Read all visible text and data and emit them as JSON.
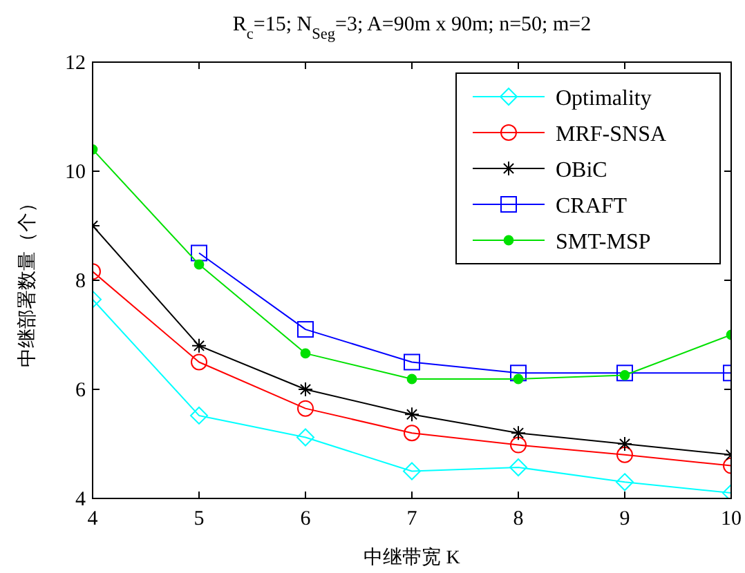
{
  "chart_data": {
    "type": "line",
    "title": "R$_{c}$=15; N$_{Seg}$=3; A=90m x 90m; n=50; m=2",
    "xlabel": "中继带宽 K",
    "ylabel": "中继部署数量（个）",
    "x": [
      4,
      5,
      6,
      7,
      8,
      9,
      10
    ],
    "xlim": [
      4,
      10
    ],
    "xticks": [
      4,
      5,
      6,
      7,
      8,
      9,
      10
    ],
    "ylim": [
      4,
      12
    ],
    "yticks": [
      4,
      6,
      8,
      10,
      12
    ],
    "grid": false,
    "legend": "top right",
    "line_style": "solid",
    "series": [
      {
        "name": "Optimality",
        "color": "#00ffff",
        "marker": "diamond",
        "values": [
          7.65,
          5.52,
          5.12,
          4.5,
          4.57,
          4.3,
          4.1
        ]
      },
      {
        "name": "MRF-SNSA",
        "color": "#ff0000",
        "marker": "circle",
        "values": [
          8.16,
          6.5,
          5.65,
          5.2,
          4.98,
          4.8,
          4.6
        ]
      },
      {
        "name": "OBiC",
        "color": "#000000",
        "marker": "cross",
        "values": [
          9.0,
          6.8,
          6.0,
          5.54,
          5.2,
          5.0,
          4.8
        ]
      },
      {
        "name": "CRAFT",
        "color": "#0000ff",
        "marker": "square",
        "values": [
          null,
          8.5,
          7.1,
          6.5,
          6.3,
          6.3,
          6.3
        ]
      },
      {
        "name": "SMT-MSP",
        "color": "#00e000",
        "marker": "point",
        "values": [
          10.4,
          8.29,
          6.66,
          6.19,
          6.19,
          6.26,
          7.0
        ]
      }
    ]
  }
}
